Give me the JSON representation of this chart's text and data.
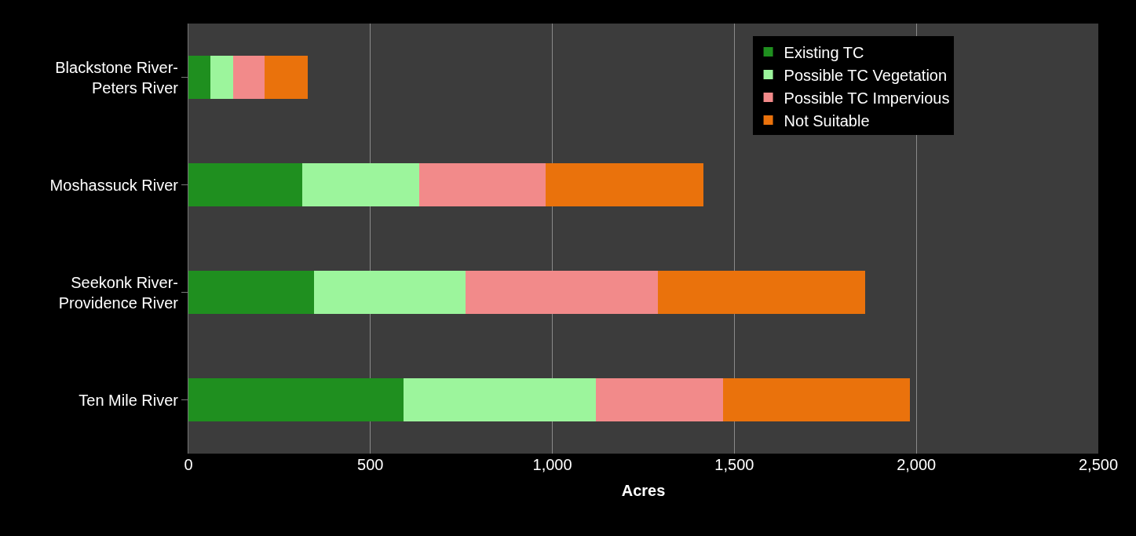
{
  "chart_data": {
    "type": "bar",
    "orientation": "horizontal",
    "stacked": true,
    "categories": [
      "Blackstone River-Peters River",
      "Moshassuck River",
      "Seekonk River-Providence River",
      "Ten Mile River"
    ],
    "series": [
      {
        "name": "Existing TC",
        "color": "#1f8f1f",
        "values": [
          61,
          312,
          345,
          590
        ]
      },
      {
        "name": "Possible TC Vegetation",
        "color": "#9cf59c",
        "values": [
          61,
          323,
          416,
          529
        ]
      },
      {
        "name": "Possible TC Impervious",
        "color": "#f28a8a",
        "values": [
          87,
          347,
          529,
          349
        ]
      },
      {
        "name": "Not Suitable",
        "color": "#ea720c",
        "values": [
          119,
          434,
          570,
          514
        ]
      }
    ],
    "xlabel": "Acres",
    "xlim": [
      0,
      2500
    ],
    "xticks": [
      0,
      {
        "value": 500,
        "label": "500"
      },
      {
        "value": 1000,
        "label": "1,000"
      },
      {
        "value": 1500,
        "label": "1,500"
      },
      {
        "value": 2000,
        "label": "2,000"
      },
      {
        "value": 2500,
        "label": "2,500"
      }
    ],
    "grid": "x",
    "legend": "top right"
  }
}
